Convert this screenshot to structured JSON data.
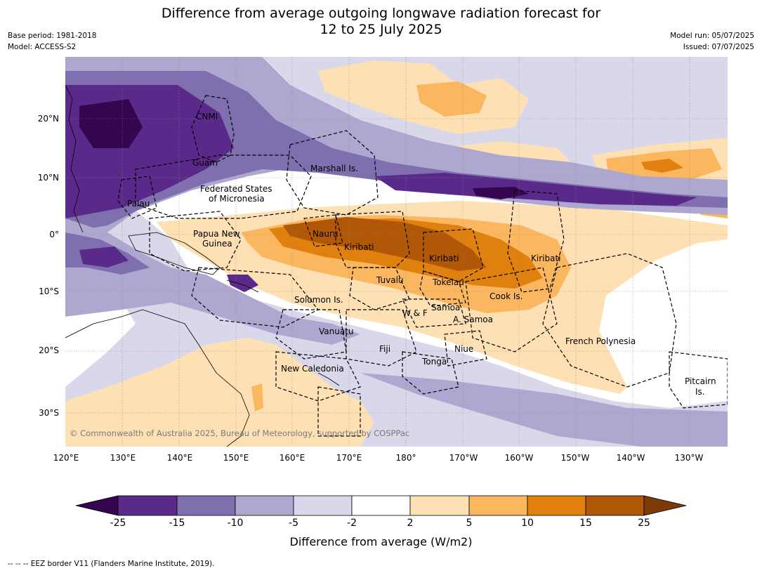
{
  "title": {
    "line1": "Difference from average outgoing longwave radiation forecast for",
    "line2": "12 to 25 July 2025"
  },
  "meta": {
    "base_period": "Base period: 1981-2018",
    "model": "Model: ACCESS-S2",
    "model_run": "Model run: 05/07/2025",
    "issued": "Issued: 07/07/2025"
  },
  "map": {
    "lon_ticks": [
      "120°E",
      "130°E",
      "140°E",
      "150°E",
      "160°E",
      "170°E",
      "180°",
      "170°W",
      "160°W",
      "150°W",
      "140°W",
      "130°W"
    ],
    "lat_ticks": [
      "20°N",
      "10°N",
      "0°",
      "10°S",
      "20°S",
      "30°S"
    ],
    "labels": {
      "cnmi": "CNMI",
      "guam": "Guam",
      "marshall": "Marshall Is.",
      "fsm_1": "Federated States",
      "fsm_2": "of Micronesia",
      "palau": "Palau",
      "png_1": "Papua New",
      "png_2": "Guinea",
      "nauru": "Nauru",
      "kiribati_1": "Kiribati",
      "kiribati_2": "Kiribati",
      "kiribati_3": "Kiribati",
      "tuvalu": "Tuvalu",
      "tokelau": "Tokelau",
      "cook": "Cook Is.",
      "solomon": "Solomon Is.",
      "samoa": "Samoa",
      "wf": "W & F",
      "asamoa": "A. Samoa",
      "vanuatu": "Vanuatu",
      "fiji": "Fiji",
      "niue": "Niue",
      "tonga": "Tonga",
      "frpoly": "French Polynesia",
      "newcal": "New Caledonia",
      "pitcairn_1": "Pitcairn",
      "pitcairn_2": "Is."
    },
    "copyright": "© Commonwealth of Australia 2025, Bureau of Meteorology, supported by COSPPac"
  },
  "colorbar": {
    "title": "Difference from average (W/m2)",
    "labels": [
      "-25",
      "-15",
      "-10",
      "-5",
      "-2",
      "2",
      "5",
      "10",
      "15",
      "25"
    ],
    "colors": [
      "#5a2a8a",
      "#7f6fae",
      "#aea8d0",
      "#d8d8ea",
      "#ffffff",
      "#fee0b5",
      "#fbb660",
      "#e0800f",
      "#b15808"
    ],
    "under_color": "#35054f",
    "over_color": "#7c3a07"
  },
  "footer": "--  --  -- EEZ border V11 (Flanders Marine Institute, 2019)."
}
